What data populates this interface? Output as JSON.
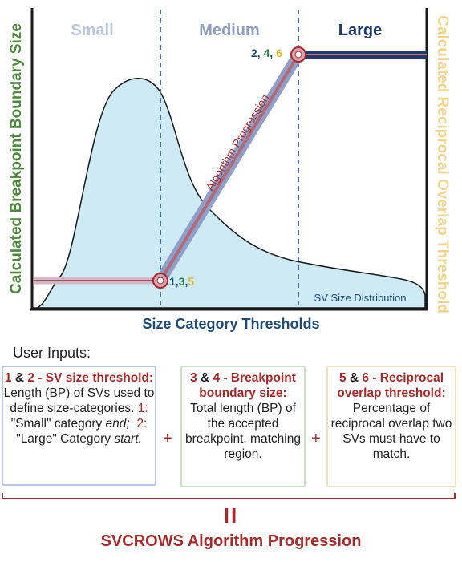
{
  "diagram": {
    "categories": {
      "small": "Small",
      "medium": "Medium",
      "large": "Large"
    },
    "y_axis_left": "Calculated Breakpoint Boundary Size",
    "y_axis_right": "Calculated Reciprocal Overlap Threshold",
    "x_axis": "Size Category Thresholds",
    "progression_label": "Algorithm Progression",
    "distribution_label": "SV Size Distribution",
    "point_low": {
      "n1": "1",
      "n2": "3",
      "n3": "5"
    },
    "point_high": {
      "n1": "2",
      "n2": "4",
      "n3": "6"
    },
    "colors": {
      "small": "#b7c6dc",
      "medium": "#8e9fc4",
      "large": "#1e3a6e",
      "left_axis": "#4a8a3a",
      "right_axis": "#f2d58c",
      "progression": "#a62a2a",
      "distribution_fill": "#cdeaf5",
      "n1": "#1e4a7a",
      "n2": "#2e7d4a",
      "n3": "#e6b52a"
    }
  },
  "inputs": {
    "title": "User Inputs:",
    "box1": {
      "n_a": "1",
      "amp": "&",
      "n_b": "2",
      "head_rest": "- SV size threshold:",
      "line1": "Length (BP) of SVs used to define size-categories.",
      "ref1": "1:",
      "cat1": "\"Small\"",
      "word_category": "category",
      "end_word": "end;",
      "ref2": "2:",
      "cat2": "\"Large\" Category",
      "start_word": "start."
    },
    "box2": {
      "n_a": "3",
      "amp": "&",
      "n_b": "4",
      "head_rest": "- Breakpoint boundary size:",
      "body": "Total length (BP) of the accepted breakpoint. matching region."
    },
    "box3": {
      "n_a": "5",
      "amp": "&",
      "n_b": "6",
      "head_rest": "- Reciprocal overlap threshold:",
      "body": "Percentage of reciprocal overlap two SVs must have to match."
    },
    "plus": "+",
    "equals": "II",
    "footer": "SVCROWS Algorithm Progression"
  }
}
